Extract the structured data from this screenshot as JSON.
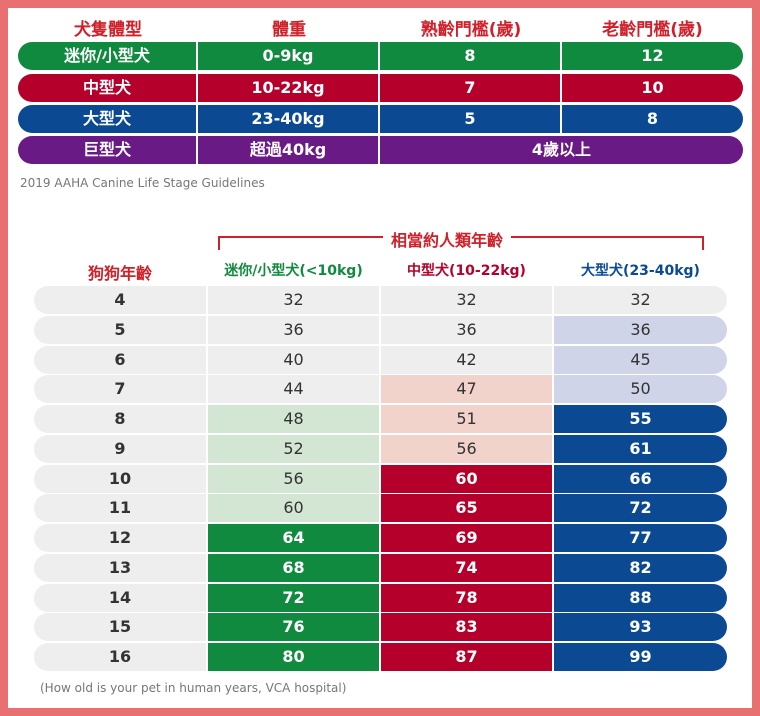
{
  "size_table": {
    "headers": [
      "犬隻體型",
      "體重",
      "熟齡門檻(歲)",
      "老齡門檻(歲)"
    ],
    "rows": [
      {
        "name": "迷你/小型犬",
        "weight": "0-9kg",
        "mature": "8",
        "senior": "12",
        "color": "#108a3e"
      },
      {
        "name": "中型犬",
        "weight": "10-22kg",
        "mature": "7",
        "senior": "10",
        "color": "#b4002a"
      },
      {
        "name": "大型犬",
        "weight": "23-40kg",
        "mature": "5",
        "senior": "8",
        "color": "#0b4a93"
      },
      {
        "name": "巨型犬",
        "weight": "超過40kg",
        "merged": "4歲以上",
        "color": "#6a1a85"
      }
    ],
    "caption": "2019 AAHA Canine Life Stage Guidelines"
  },
  "age_table": {
    "bracket_label": "相當約人類年齡",
    "age_header": "狗狗年齡",
    "columns": [
      {
        "label": "迷你/小型犬(<10kg)",
        "color": "#108a3e"
      },
      {
        "label": "中型犬(10-22kg)",
        "color": "#b4002a"
      },
      {
        "label": "大型犬(23-40kg)",
        "color": "#0b4a93"
      }
    ],
    "rows": [
      {
        "age": "4",
        "values": [
          "32",
          "32",
          "32"
        ],
        "tiers": [
          0,
          0,
          0
        ]
      },
      {
        "age": "5",
        "values": [
          "36",
          "36",
          "36"
        ],
        "tiers": [
          0,
          0,
          1
        ]
      },
      {
        "age": "6",
        "values": [
          "40",
          "42",
          "45"
        ],
        "tiers": [
          0,
          0,
          1
        ]
      },
      {
        "age": "7",
        "values": [
          "44",
          "47",
          "50"
        ],
        "tiers": [
          0,
          1,
          1
        ]
      },
      {
        "age": "8",
        "values": [
          "48",
          "51",
          "55"
        ],
        "tiers": [
          1,
          1,
          2
        ]
      },
      {
        "age": "9",
        "values": [
          "52",
          "56",
          "61"
        ],
        "tiers": [
          1,
          1,
          2
        ]
      },
      {
        "age": "10",
        "values": [
          "56",
          "60",
          "66"
        ],
        "tiers": [
          1,
          2,
          2
        ]
      },
      {
        "age": "11",
        "values": [
          "60",
          "65",
          "72"
        ],
        "tiers": [
          1,
          2,
          2
        ]
      },
      {
        "age": "12",
        "values": [
          "64",
          "69",
          "77"
        ],
        "tiers": [
          2,
          2,
          2
        ]
      },
      {
        "age": "13",
        "values": [
          "68",
          "74",
          "82"
        ],
        "tiers": [
          2,
          2,
          2
        ]
      },
      {
        "age": "14",
        "values": [
          "72",
          "78",
          "88"
        ],
        "tiers": [
          2,
          2,
          2
        ]
      },
      {
        "age": "15",
        "values": [
          "76",
          "83",
          "93"
        ],
        "tiers": [
          2,
          2,
          2
        ]
      },
      {
        "age": "16",
        "values": [
          "80",
          "87",
          "99"
        ],
        "tiers": [
          2,
          2,
          2
        ]
      }
    ],
    "tier_colors": [
      [
        "#eeeeee",
        "#d3e6d3",
        "#108a3e"
      ],
      [
        "#eeeeee",
        "#f2d3cb",
        "#b4002a"
      ],
      [
        "#eeeeee",
        "#d0d4e8",
        "#0b4a93"
      ]
    ],
    "caption": "(How old is your pet in human years, VCA hospital)"
  }
}
